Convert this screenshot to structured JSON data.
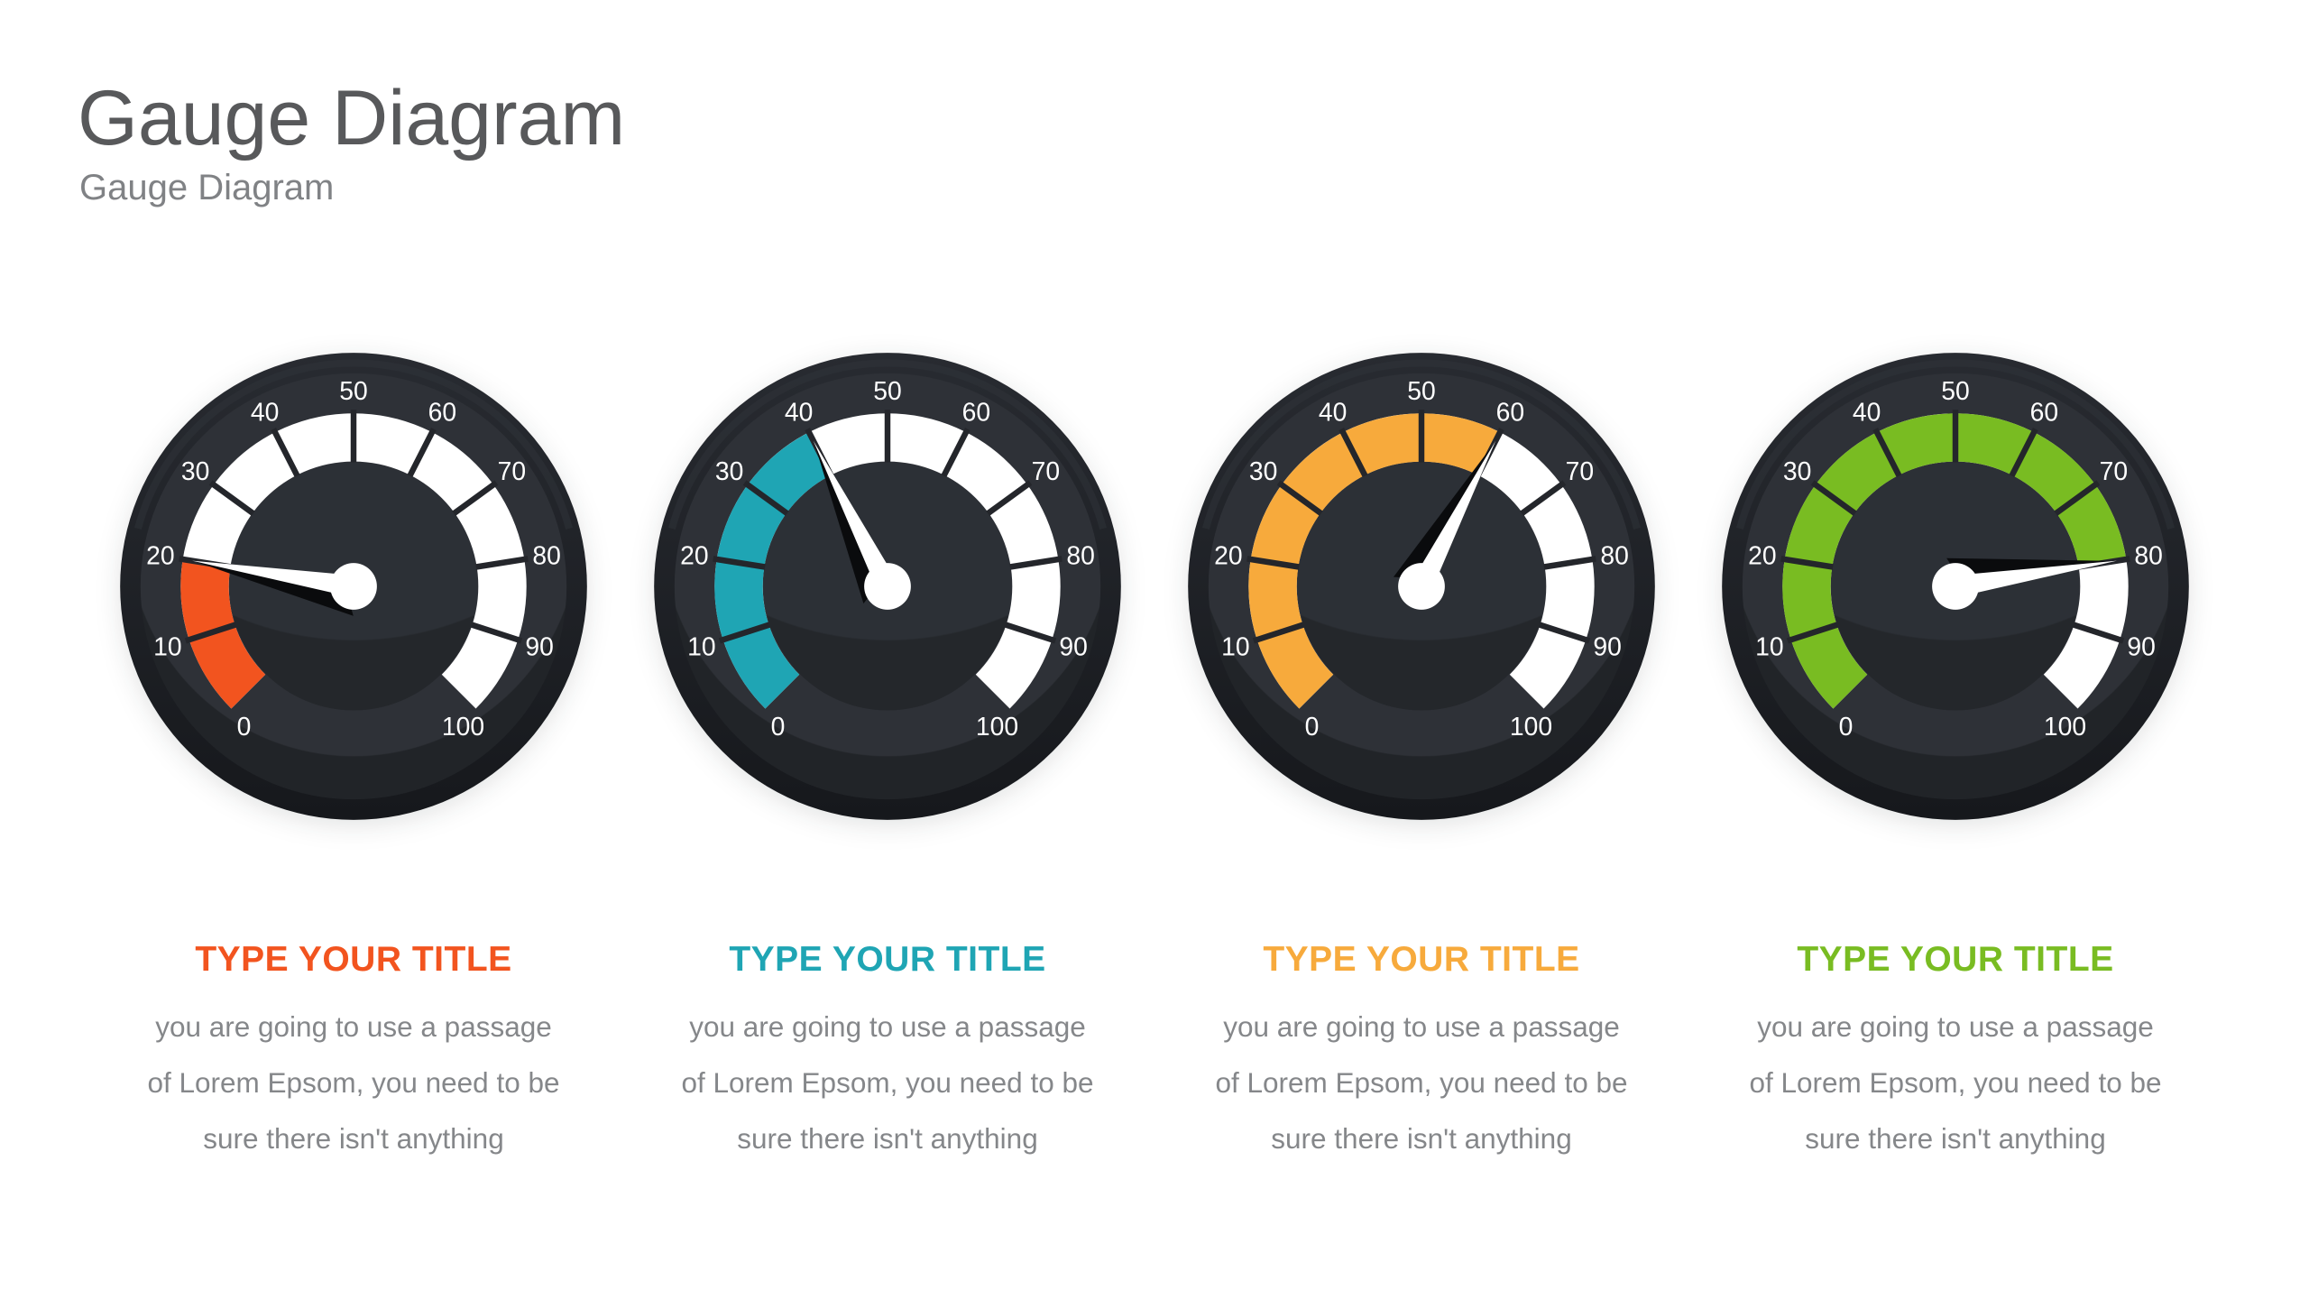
{
  "header": {
    "title": "Gauge Diagram",
    "subtitle": "Gauge Diagram"
  },
  "chart_data": {
    "type": "gauge",
    "min": 0,
    "max": 100,
    "tick_interval": 10,
    "tick_labels": [
      "0",
      "10",
      "20",
      "30",
      "40",
      "50",
      "60",
      "70",
      "80",
      "90",
      "100"
    ],
    "start_angle_deg": 135,
    "sweep_deg": 270,
    "gauges": [
      {
        "title": "TYPE YOUR TITLE",
        "description": "you are going to use a passage\nof Lorem Epsom, you need to be\nsure there isn't anything",
        "value": 20,
        "color": "#F2541F"
      },
      {
        "title": "TYPE YOUR TITLE",
        "description": "you are going to use a passage\nof Lorem Epsom, you need to be\nsure there isn't anything",
        "value": 40,
        "color": "#1FA5B4"
      },
      {
        "title": "TYPE YOUR TITLE",
        "description": "you are going to use a passage\nof Lorem Epsom, you need to be\nsure there isn't anything",
        "value": 60,
        "color": "#F7AA3C"
      },
      {
        "title": "TYPE YOUR TITLE",
        "description": "you are going to use a passage\nof Lorem Epsom, you need to be\nsure there isn't anything",
        "value": 80,
        "color": "#79BC22"
      }
    ],
    "palette": {
      "rim_top": "#282b31",
      "rim_bottom": "#16181c",
      "dial_light": "#2E3137",
      "dial_dark": "#212428",
      "face_light": "#2C3036",
      "face_dark": "#24272B",
      "scale_base": "#FFFFFF",
      "tick_gap": "#24262B",
      "needle": "#FFFFFF",
      "needle_shadow": "#0A0B0D"
    }
  }
}
